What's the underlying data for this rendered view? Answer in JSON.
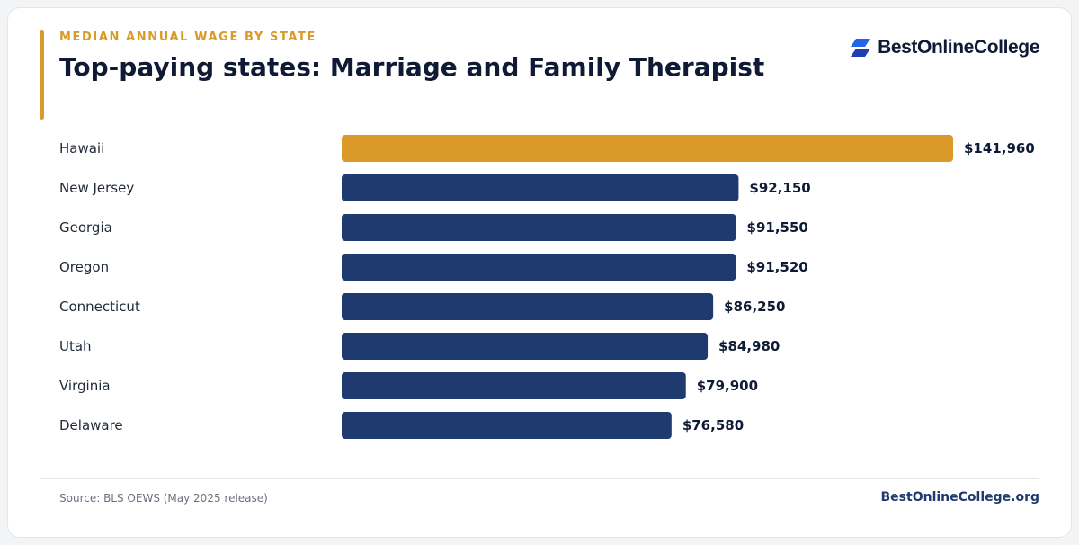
{
  "header": {
    "eyebrow": "MEDIAN ANNUAL WAGE BY STATE",
    "title": "Top-paying states: Marriage and Family Therapist"
  },
  "brand": {
    "logo_text": "BestOnlineCollege",
    "logo_icon": "stacked-parallelogram-logo-icon",
    "logo_color": "#2563eb"
  },
  "footer": {
    "source": "Source: BLS OEWS (May 2025 release)",
    "site": "BestOnlineCollege.org"
  },
  "colors": {
    "highlight": "#d99a29",
    "bar": "#1e3a6e",
    "label": "#1f2937",
    "value": "#0f1b35"
  },
  "chart_data": {
    "type": "bar",
    "orientation": "horizontal",
    "categories": [
      "Hawaii",
      "New Jersey",
      "Georgia",
      "Oregon",
      "Connecticut",
      "Utah",
      "Virginia",
      "Delaware"
    ],
    "values": [
      141960,
      92150,
      91550,
      91520,
      86250,
      84980,
      79900,
      76580
    ],
    "value_labels": [
      "$141,960",
      "$92,150",
      "$91,550",
      "$91,520",
      "$86,250",
      "$84,980",
      "$79,900",
      "$76,580"
    ],
    "highlight_index": 0,
    "xlim": [
      0,
      141960
    ],
    "grid": false,
    "title": "Top-paying states: Marriage and Family Therapist"
  }
}
